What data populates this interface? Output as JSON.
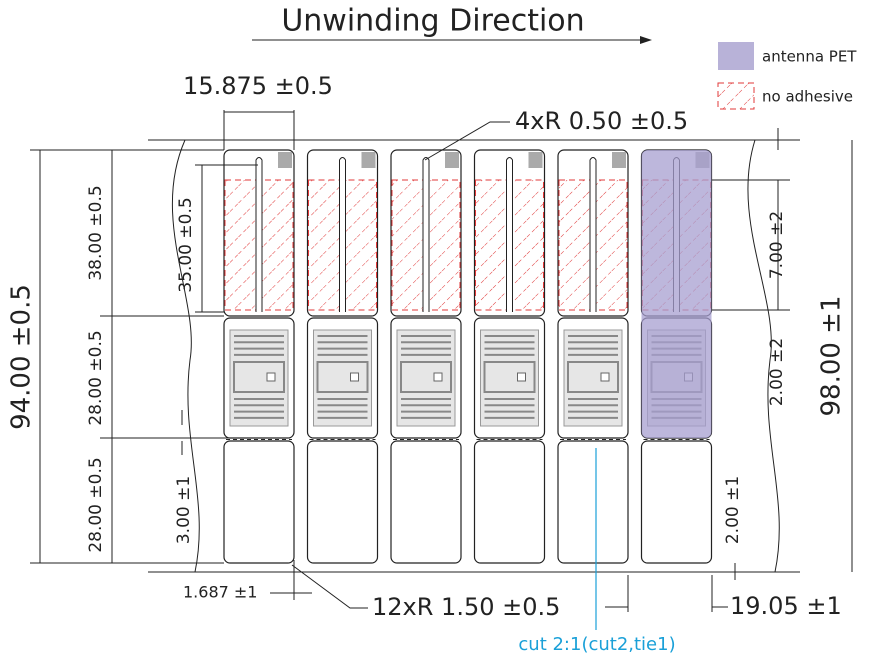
{
  "title": "Unwinding Direction",
  "legend": [
    {
      "label": "antenna PET"
    },
    {
      "label": "no adhesive"
    }
  ],
  "dimensions": {
    "label_width": "15.875 ±0.5",
    "corner_radius_small": "4xR 0.50 ±0.5",
    "total_height": "94.00 ±0.5",
    "top_section": "38.00 ±0.5",
    "middle_section": "28.00 ±0.5",
    "bottom_section": "28.00 ±0.5",
    "no_adhesive_height": "35.00 ±0.5",
    "slot_offset": "3.00 ±1",
    "top_margin": "7.00 ±2",
    "antenna_gap": "2.00 ±2",
    "bottom_margin": "2.00 ±1",
    "liner_width": "98.00 ±1",
    "gap": "1.687 ±1",
    "corner_radius_large": "12xR 1.50 ±0.5",
    "pitch": "19.05 ±1",
    "cut": "cut 2:1(cut2,tie1)"
  }
}
